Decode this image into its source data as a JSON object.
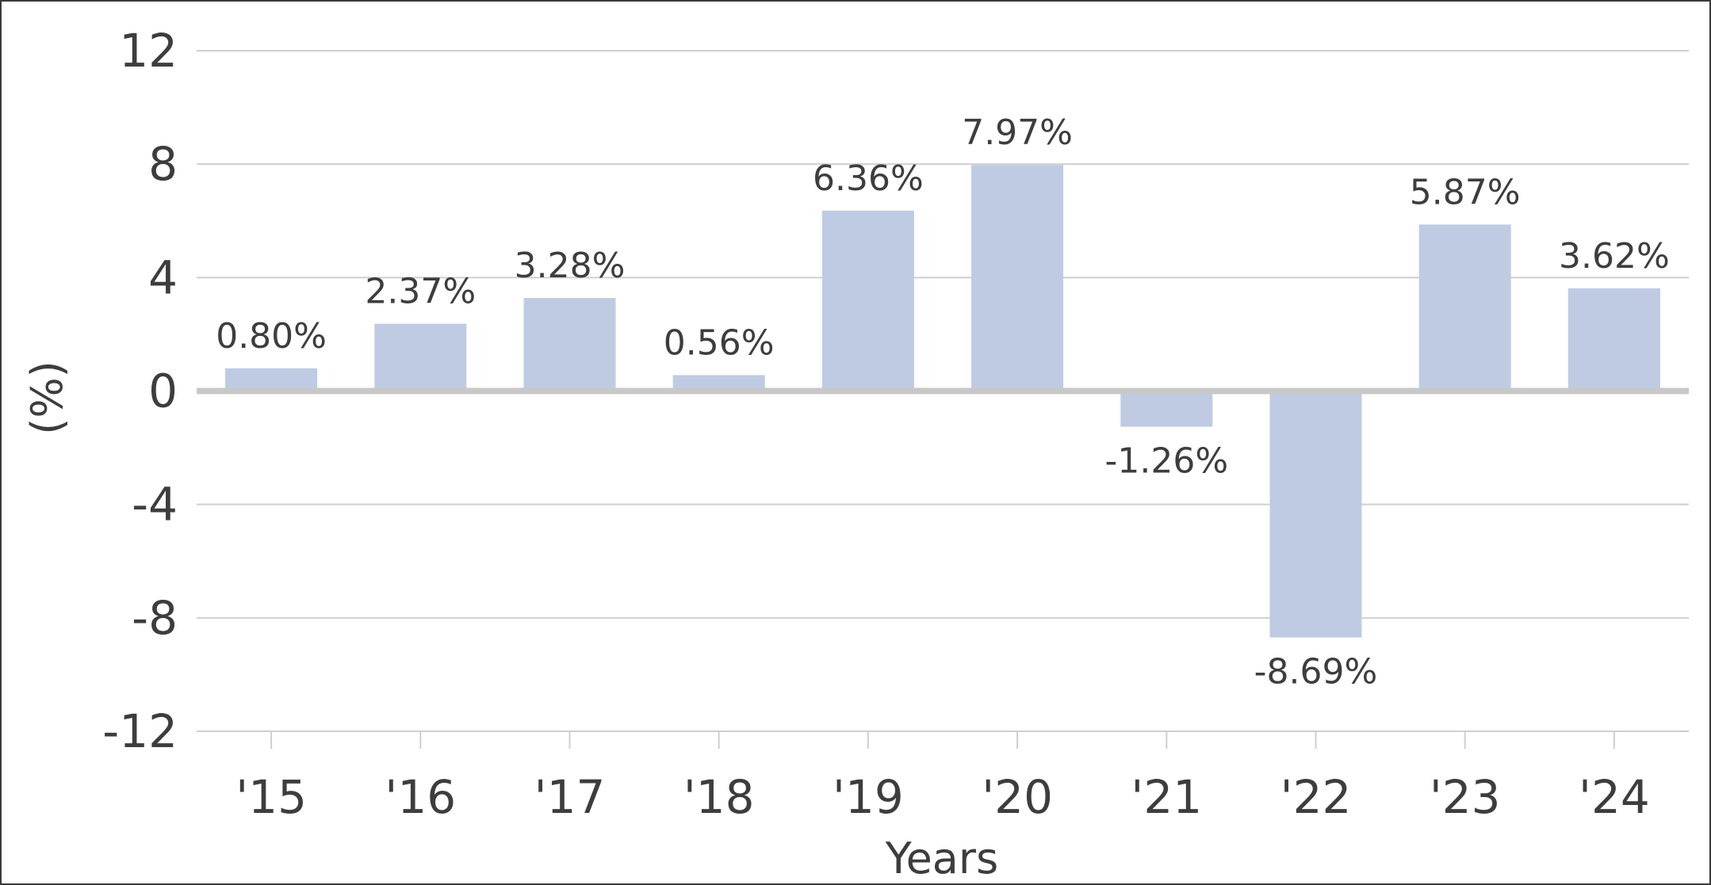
{
  "chart_data": {
    "type": "bar",
    "title": "",
    "xlabel": "Years",
    "ylabel": "(%)",
    "categories": [
      "'15",
      "'16",
      "'17",
      "'18",
      "'19",
      "'20",
      "'21",
      "'22",
      "'23",
      "'24"
    ],
    "values": [
      0.8,
      2.37,
      3.28,
      0.56,
      6.36,
      7.97,
      -1.26,
      -8.69,
      5.87,
      3.62
    ],
    "data_labels": [
      "0.80%",
      "2.37%",
      "3.28%",
      "0.56%",
      "6.36%",
      "7.97%",
      "-1.26%",
      "-8.69%",
      "5.87%",
      "3.62%"
    ],
    "yticks": [
      12,
      8,
      4,
      0,
      -4,
      -8,
      -12
    ],
    "ylim": [
      -12,
      12
    ],
    "grid": true,
    "legend": "none",
    "colors": {
      "bar": "#bfcbe3",
      "grid": "#cfcfcf",
      "zero_line": "#c8c8c8",
      "text": "#3d3d3d"
    }
  }
}
